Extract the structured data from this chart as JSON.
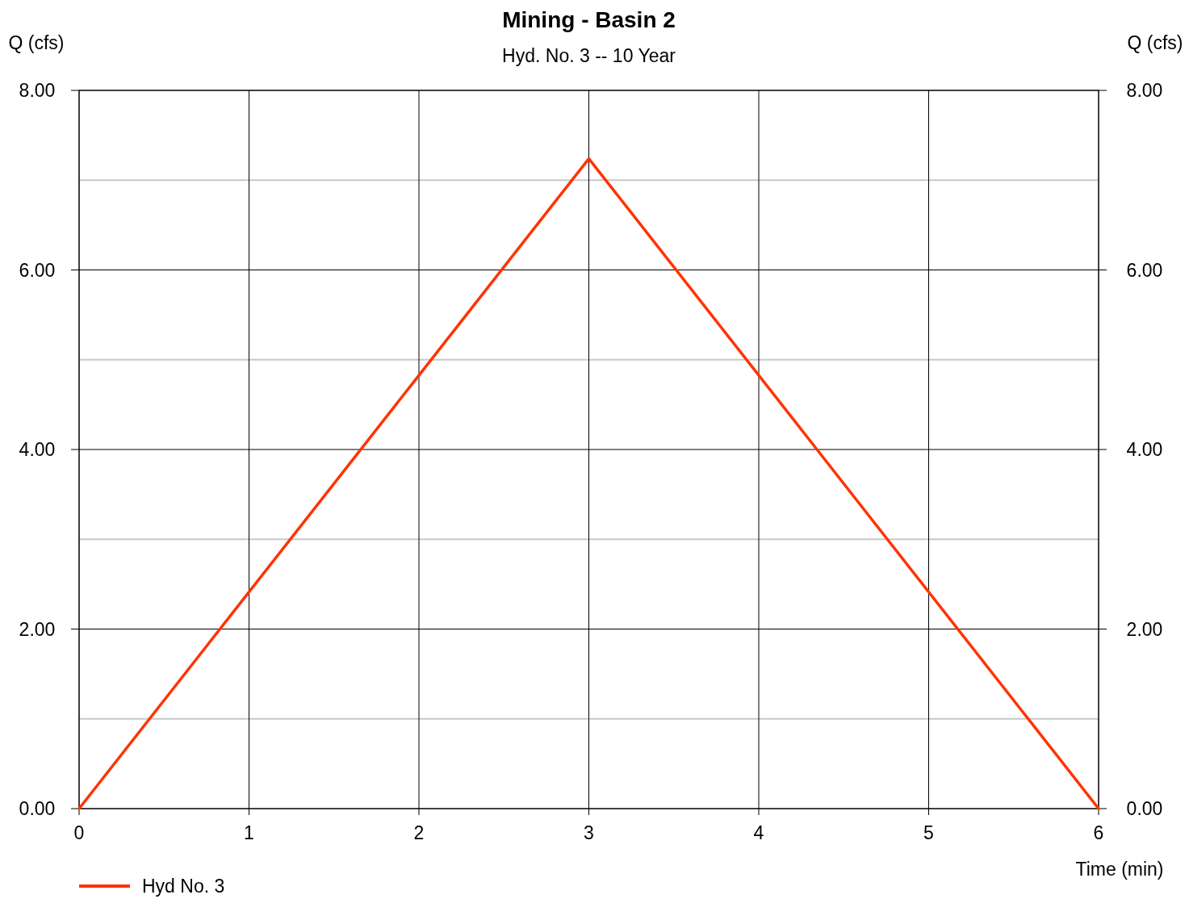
{
  "chart_data": {
    "type": "line",
    "title": "Mining - Basin 2",
    "subtitle": "Hyd. No. 3 -- 10 Year",
    "xlabel": "Time (min)",
    "ylabel": "Q (cfs)",
    "y2label": "Q (cfs)",
    "x": [
      0,
      3,
      6
    ],
    "series": [
      {
        "name": "Hyd No. 3",
        "color": "#ff3300",
        "values": [
          0,
          7.24,
          0
        ]
      }
    ],
    "xlim": [
      0,
      6
    ],
    "xticks": [
      0,
      1,
      2,
      3,
      4,
      5,
      6
    ],
    "ylim": [
      0,
      8
    ],
    "yticks": [
      {
        "value": 0,
        "label": "0.00"
      },
      {
        "value": 1,
        "label": null
      },
      {
        "value": 2,
        "label": "2.00"
      },
      {
        "value": 3,
        "label": null
      },
      {
        "value": 4,
        "label": "4.00"
      },
      {
        "value": 5,
        "label": null
      },
      {
        "value": 6,
        "label": "6.00"
      },
      {
        "value": 7,
        "label": null
      },
      {
        "value": 8,
        "label": "8.00"
      }
    ],
    "y2lim": [
      0,
      8
    ],
    "y2ticks": [
      {
        "value": 0,
        "label": "0.00"
      },
      {
        "value": 2,
        "label": "2.00"
      },
      {
        "value": 4,
        "label": "4.00"
      },
      {
        "value": 6,
        "label": "6.00"
      },
      {
        "value": 8,
        "label": "8.00"
      }
    ],
    "grid": true,
    "legend": "bottom left",
    "marker": "none",
    "line_style": "solid"
  }
}
